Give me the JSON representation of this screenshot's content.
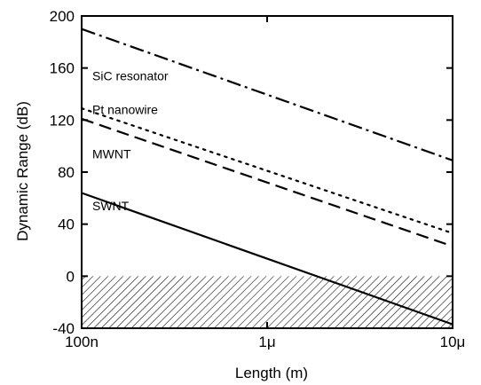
{
  "chart_data": {
    "type": "line",
    "title": "",
    "xlabel": "Length (m)",
    "ylabel": "Dynamic Range (dB)",
    "x_scale": "log",
    "xlim": [
      1e-07,
      1e-05
    ],
    "ylim": [
      -40,
      200
    ],
    "x_ticks": [
      {
        "value": 1e-07,
        "label": "100n"
      },
      {
        "value": 1e-06,
        "label": "1μ"
      },
      {
        "value": 1e-05,
        "label": "10μ"
      }
    ],
    "y_ticks": [
      {
        "value": -40,
        "label": "-40"
      },
      {
        "value": 0,
        "label": "0"
      },
      {
        "value": 40,
        "label": "40"
      },
      {
        "value": 80,
        "label": "80"
      },
      {
        "value": 120,
        "label": "120"
      },
      {
        "value": 160,
        "label": "160"
      },
      {
        "value": 200,
        "label": "200"
      }
    ],
    "grid": false,
    "series": [
      {
        "name": "SiC resonator",
        "style": "dashdot",
        "x": [
          1e-07,
          1e-05
        ],
        "y": [
          190,
          89
        ]
      },
      {
        "name": "Pt nanowire",
        "style": "dotted",
        "x": [
          1e-07,
          1e-05
        ],
        "y": [
          129,
          33
        ]
      },
      {
        "name": "MWNT",
        "style": "dashed",
        "x": [
          1e-07,
          1e-05
        ],
        "y": [
          121,
          23
        ]
      },
      {
        "name": "SWNT",
        "style": "solid",
        "x": [
          1e-07,
          1e-05
        ],
        "y": [
          64,
          -37
        ]
      }
    ],
    "shaded_region": {
      "y_from": -40,
      "y_to": 0,
      "pattern": "hatched"
    },
    "colors": {
      "line": "#000000",
      "background": "#ffffff"
    }
  }
}
